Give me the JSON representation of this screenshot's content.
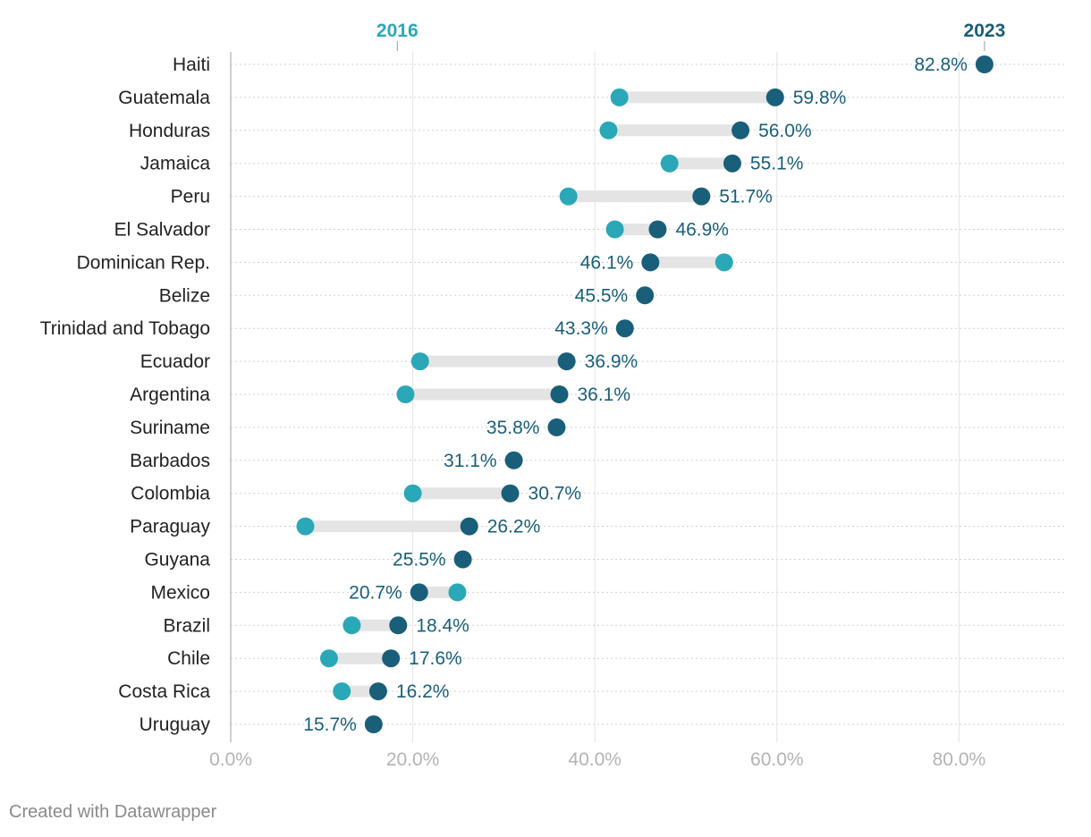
{
  "chart_data": {
    "type": "dumbbell",
    "title": "",
    "xlabel": "",
    "ylabel": "",
    "xlim": [
      0,
      91
    ],
    "x_ticks": [
      0,
      20,
      40,
      60,
      80
    ],
    "x_tick_labels": [
      "0.0%",
      "20.0%",
      "40.0%",
      "60.0%",
      "80.0%"
    ],
    "grid": true,
    "series": [
      {
        "name": "2016",
        "color": "#2aa8b8"
      },
      {
        "name": "2023",
        "color": "#1a5f7a"
      }
    ],
    "categories": [
      "Haiti",
      "Guatemala",
      "Honduras",
      "Jamaica",
      "Peru",
      "El Salvador",
      "Dominican Rep.",
      "Belize",
      "Trinidad and Tobago",
      "Ecuador",
      "Argentina",
      "Suriname",
      "Barbados",
      "Colombia",
      "Paraguay",
      "Guyana",
      "Mexico",
      "Brazil",
      "Chile",
      "Costa Rica",
      "Uruguay"
    ],
    "values_2016": [
      null,
      42.7,
      41.5,
      48.2,
      37.1,
      42.2,
      54.2,
      null,
      null,
      20.8,
      19.2,
      null,
      null,
      20.0,
      8.2,
      null,
      24.9,
      13.3,
      10.8,
      12.2,
      null
    ],
    "values_2023": [
      82.8,
      59.8,
      56.0,
      55.1,
      51.7,
      46.9,
      46.1,
      45.5,
      43.3,
      36.9,
      36.1,
      35.8,
      31.1,
      30.7,
      26.2,
      25.5,
      20.7,
      18.4,
      17.6,
      16.2,
      15.7
    ],
    "labels_2023": [
      "82.8%",
      "59.8%",
      "56.0%",
      "55.1%",
      "51.7%",
      "46.9%",
      "46.1%",
      "45.5%",
      "43.3%",
      "36.9%",
      "36.1%",
      "35.8%",
      "31.1%",
      "30.7%",
      "26.2%",
      "25.5%",
      "20.7%",
      "18.4%",
      "17.6%",
      "16.2%",
      "15.7%"
    ]
  },
  "credit": "Created with Datawrapper"
}
